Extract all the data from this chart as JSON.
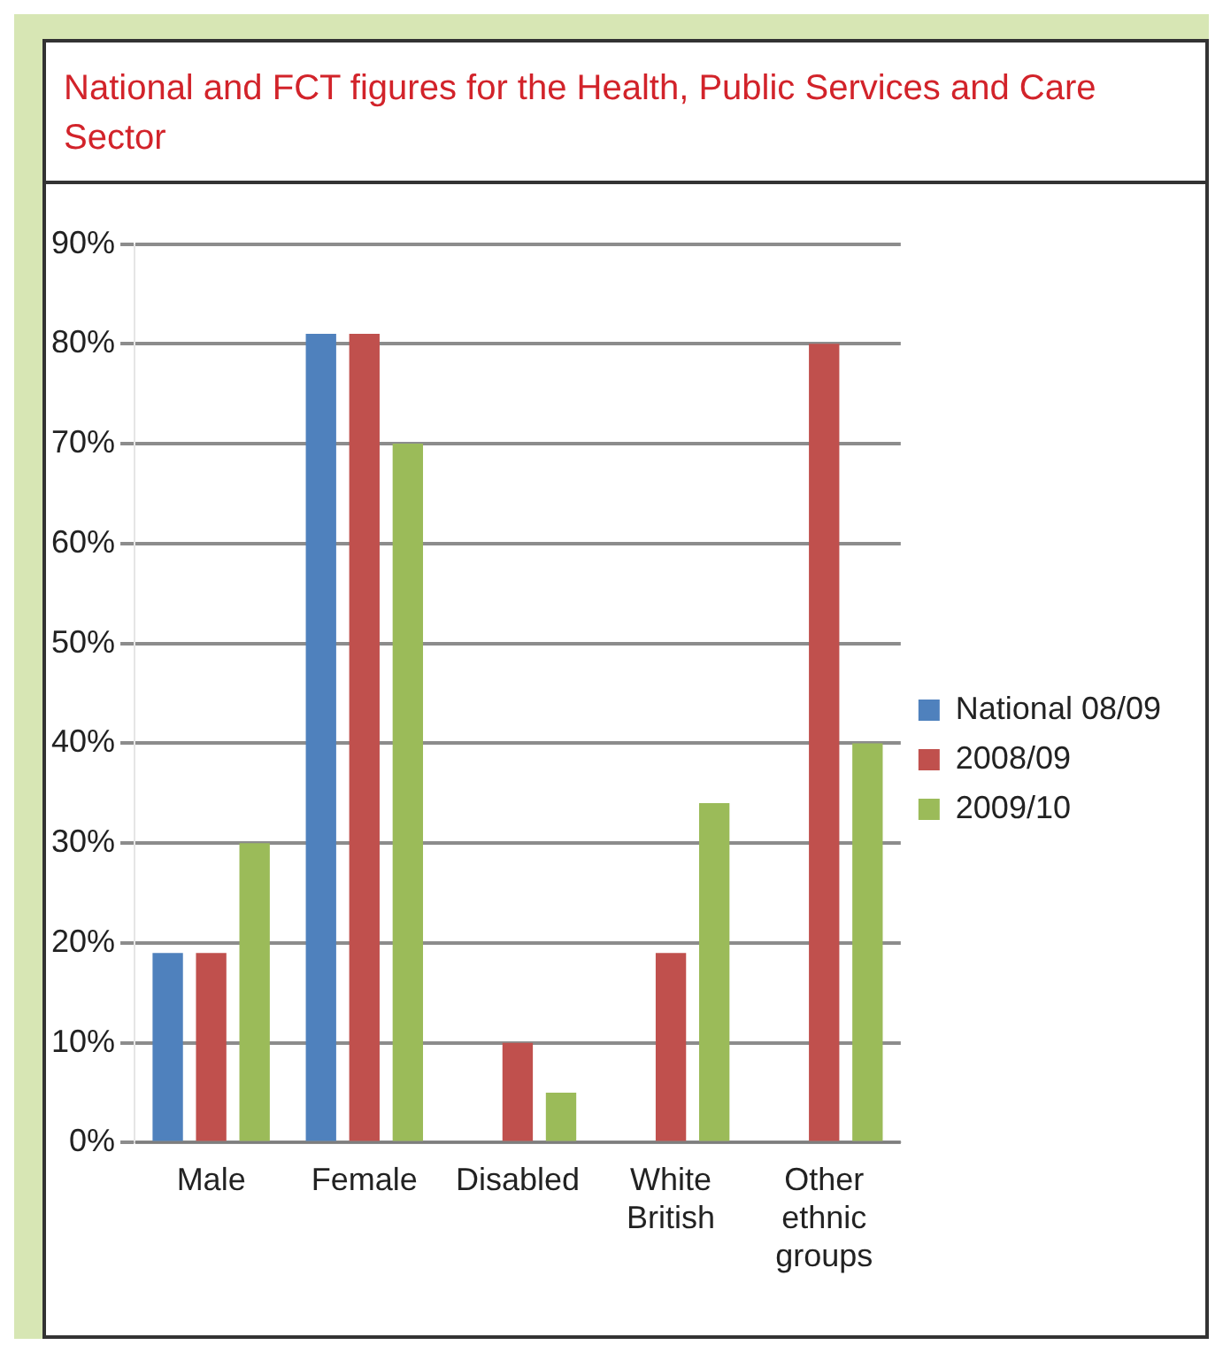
{
  "chart_data": {
    "type": "bar",
    "title": "National and FCT figures for the Health, Public Services and Care Sector",
    "categories": [
      "Male",
      "Female",
      "Disabled",
      "White British",
      "Other ethnic groups"
    ],
    "series": [
      {
        "name": "National 08/09",
        "color": "#4f81bd",
        "values": [
          19,
          81,
          null,
          null,
          null
        ]
      },
      {
        "name": "2008/09",
        "color": "#c0504d",
        "values": [
          19,
          81,
          10,
          19,
          80
        ]
      },
      {
        "name": "2009/10",
        "color": "#9bbb59",
        "values": [
          30,
          70,
          5,
          34,
          40
        ]
      }
    ],
    "ylim": [
      0,
      90
    ],
    "yticks": [
      {
        "value": 0,
        "label": "0%"
      },
      {
        "value": 10,
        "label": "10%"
      },
      {
        "value": 20,
        "label": "20%"
      },
      {
        "value": 30,
        "label": "30%"
      },
      {
        "value": 40,
        "label": "40%"
      },
      {
        "value": 50,
        "label": "50%"
      },
      {
        "value": 60,
        "label": "60%"
      },
      {
        "value": 70,
        "label": "70%"
      },
      {
        "value": 80,
        "label": "80%"
      },
      {
        "value": 90,
        "label": "90%"
      }
    ],
    "grid": "y",
    "legend": "right"
  }
}
